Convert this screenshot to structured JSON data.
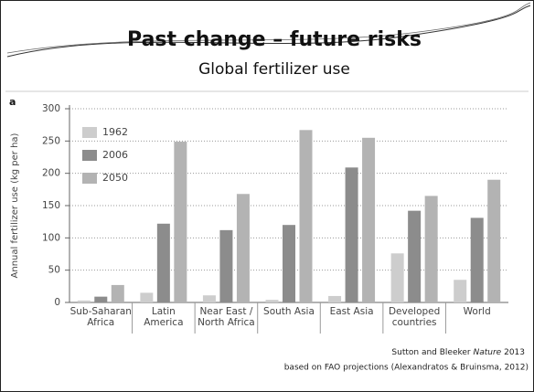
{
  "title": "Past change – future risks",
  "subtitle": "Global fertilizer use",
  "chart_data": {
    "type": "bar",
    "panel_label": "a",
    "y_label": "Annual fertilizer use (kg per ha)",
    "categories": [
      "Sub-Saharan\nAfrica",
      "Latin\nAmerica",
      "Near East /\nNorth Africa",
      "South Asia",
      "East Asia",
      "Developed\ncountries",
      "World"
    ],
    "series": [
      {
        "name": "1962",
        "color": "#cdcdcd",
        "values": [
          3,
          15,
          11,
          4,
          10,
          76,
          35
        ]
      },
      {
        "name": "2006",
        "color": "#8c8c8c",
        "values": [
          9,
          122,
          112,
          120,
          209,
          142,
          131
        ]
      },
      {
        "name": "2050",
        "color": "#b3b3b3",
        "values": [
          27,
          249,
          168,
          267,
          255,
          165,
          190
        ]
      }
    ],
    "ylim": [
      0,
      300
    ],
    "yticks": [
      0,
      50,
      100,
      150,
      200,
      250,
      300
    ],
    "grid": true,
    "legend": "upper left"
  },
  "source": {
    "authors": "Sutton and Bleeker",
    "journal": "Nature",
    "year": "2013",
    "line2": "based on FAO projections (Alexandratos & Bruinsma, 2012)"
  }
}
